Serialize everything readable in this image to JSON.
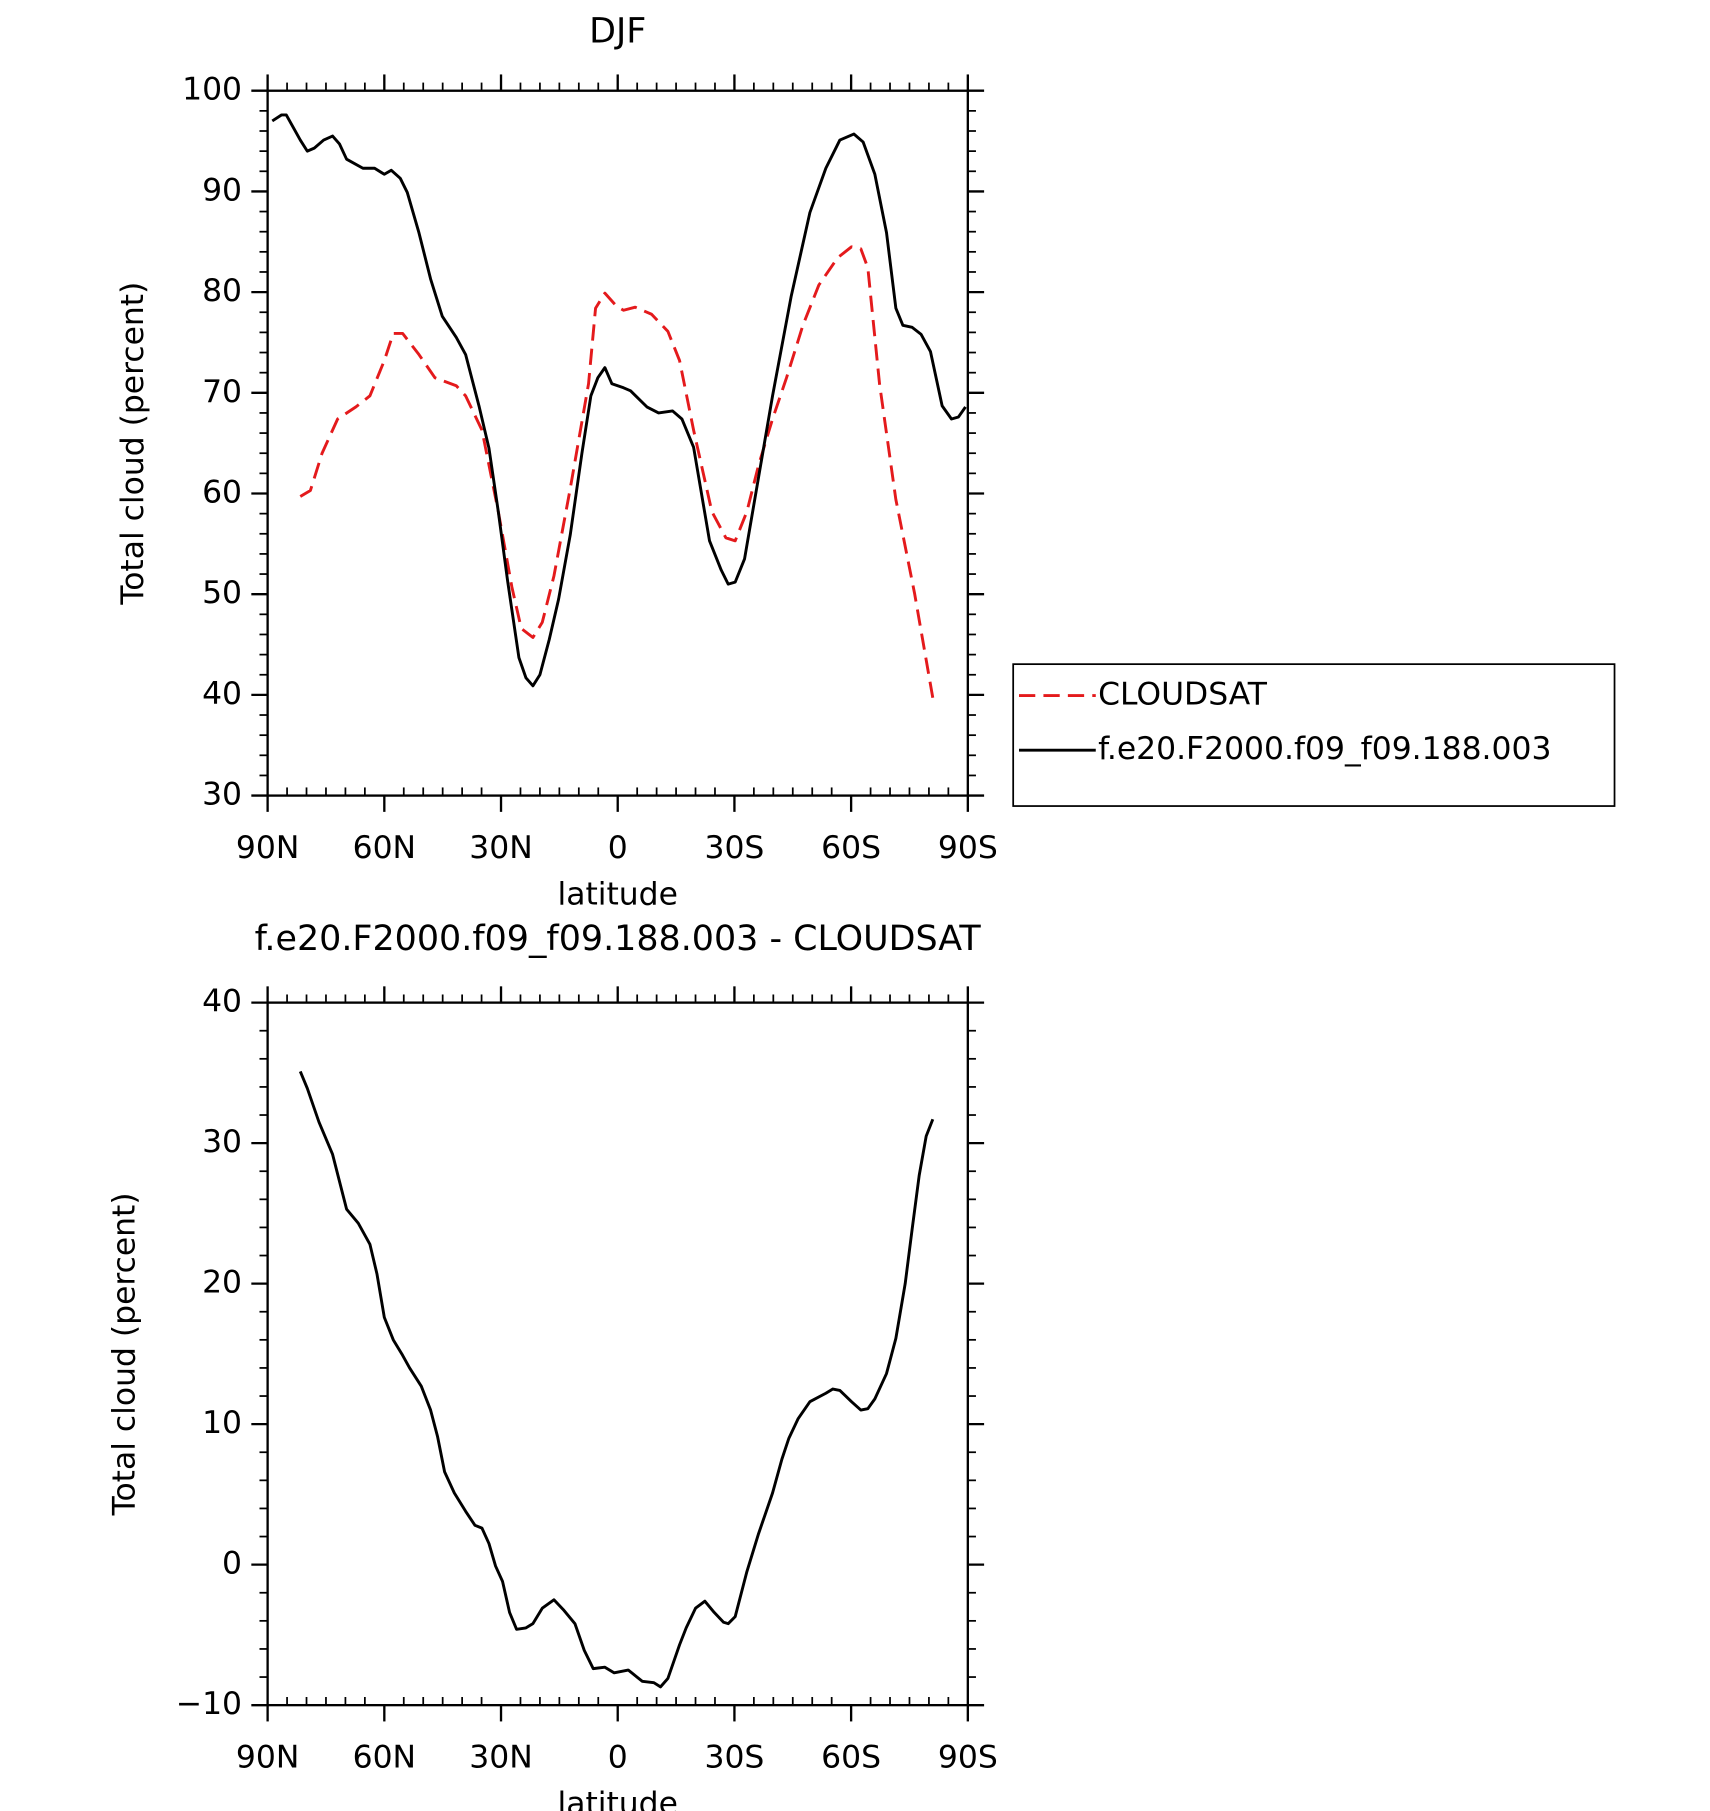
{
  "chart_data": [
    {
      "type": "line",
      "title": "DJF",
      "xlabel": "latitude",
      "ylabel": "Total cloud (percent)",
      "xlim": [
        90,
        -90
      ],
      "xticks": [
        {
          "value": 90,
          "label": "90N"
        },
        {
          "value": 60,
          "label": "60N"
        },
        {
          "value": 30,
          "label": "30N"
        },
        0,
        {
          "value": -30,
          "label": "30S"
        },
        {
          "value": -60,
          "label": "60S"
        },
        {
          "value": -90,
          "label": "90S"
        }
      ],
      "ylim": [
        30,
        100
      ],
      "yticks": [
        30,
        40,
        50,
        60,
        70,
        80,
        90,
        100
      ],
      "legend": "right",
      "series": [
        {
          "name": "CLOUDSAT",
          "color": "#e41a1c",
          "dash": "dashed",
          "x": [
            81.6,
            79.0,
            76.0,
            72.0,
            67.3,
            63.7,
            60.0,
            57.7,
            55.3,
            51.1,
            47.0,
            41.5,
            39.1,
            34.9,
            30.7,
            27.2,
            24.8,
            21.8,
            19.4,
            16.4,
            12.2,
            7.5,
            5.7,
            3.3,
            0.3,
            -1.5,
            -4.5,
            -8.7,
            -12.9,
            -15.9,
            -19.5,
            -24.2,
            -27.8,
            -30.2,
            -33.2,
            -36.2,
            -39.8,
            -43.4,
            -47.6,
            -51.7,
            -56.5,
            -60.1,
            -62.5,
            -64.3,
            -67.3,
            -71.5,
            -76.3,
            -81.0
          ],
          "values": [
            59.7,
            60.3,
            64.0,
            67.4,
            68.6,
            69.7,
            73.2,
            75.9,
            75.9,
            73.8,
            71.5,
            70.7,
            69.7,
            66.3,
            58.2,
            50.7,
            46.6,
            45.7,
            47.2,
            51.8,
            60.5,
            70.9,
            78.4,
            79.9,
            78.6,
            78.2,
            78.5,
            77.8,
            76.1,
            73.2,
            66.3,
            58.2,
            55.6,
            55.3,
            58.2,
            62.8,
            67.4,
            71.5,
            76.7,
            80.7,
            83.4,
            84.5,
            84.3,
            82.4,
            70.9,
            59.4,
            50.1,
            39.7
          ]
        },
        {
          "name": "f.e20.F2000.f09_f09.188.003",
          "color": "#000000",
          "dash": "solid",
          "x": [
            88.8,
            86.4,
            85.2,
            81.6,
            79.8,
            78.0,
            75.6,
            73.3,
            71.5,
            69.7,
            65.5,
            62.5,
            60.0,
            58.2,
            55.9,
            54.1,
            51.1,
            48.1,
            45.1,
            41.5,
            39.1,
            35.6,
            33.1,
            30.7,
            28.3,
            25.4,
            23.6,
            21.8,
            20.0,
            17.6,
            15.2,
            12.2,
            9.2,
            6.9,
            5.1,
            3.3,
            1.5,
            -1.5,
            -3.3,
            -7.5,
            -10.5,
            -14.1,
            -16.5,
            -19.5,
            -23.6,
            -26.6,
            -28.4,
            -30.2,
            -32.6,
            -36.2,
            -39.8,
            -44.6,
            -49.4,
            -53.5,
            -57.1,
            -60.7,
            -63.1,
            -66.1,
            -69.1,
            -71.5,
            -73.3,
            -75.7,
            -78.0,
            -80.4,
            -83.4,
            -85.8,
            -87.6,
            -89.4
          ],
          "values": [
            97.0,
            97.6,
            97.6,
            95.1,
            94.0,
            94.3,
            95.1,
            95.5,
            94.7,
            93.2,
            92.3,
            92.3,
            91.7,
            92.1,
            91.3,
            89.9,
            85.9,
            81.3,
            77.6,
            75.5,
            73.8,
            68.6,
            64.5,
            58.2,
            51.3,
            43.7,
            41.7,
            40.9,
            42.0,
            45.5,
            49.5,
            55.9,
            64.0,
            69.7,
            71.5,
            72.5,
            70.9,
            70.5,
            70.2,
            68.6,
            68.0,
            68.2,
            67.4,
            64.6,
            55.3,
            52.4,
            51.0,
            51.2,
            53.5,
            61.6,
            69.7,
            79.6,
            87.9,
            92.3,
            95.1,
            95.7,
            94.9,
            91.7,
            85.9,
            78.4,
            76.7,
            76.5,
            75.8,
            74.1,
            68.7,
            67.4,
            67.6,
            68.6
          ]
        }
      ]
    },
    {
      "type": "line",
      "title": "f.e20.F2000.f09_f09.188.003 - CLOUDSAT",
      "xlabel": "latitude",
      "ylabel": "Total cloud (percent)",
      "xlim": [
        90,
        -90
      ],
      "xticks": [
        {
          "value": 90,
          "label": "90N"
        },
        {
          "value": 60,
          "label": "60N"
        },
        {
          "value": 30,
          "label": "30N"
        },
        0,
        {
          "value": -30,
          "label": "30S"
        },
        {
          "value": -60,
          "label": "60S"
        },
        {
          "value": -90,
          "label": "90S"
        }
      ],
      "ylim": [
        -10,
        40
      ],
      "yticks": [
        {
          "value": -10,
          "label": "−10"
        },
        0,
        10,
        20,
        30,
        40
      ],
      "series": [
        {
          "color": "#000000",
          "dash": "solid",
          "x": [
            81.6,
            79.8,
            76.8,
            73.3,
            69.7,
            66.7,
            63.7,
            61.9,
            60.0,
            57.7,
            55.3,
            53.5,
            50.5,
            48.1,
            46.3,
            44.5,
            42.0,
            39.1,
            36.7,
            34.9,
            33.1,
            31.4,
            29.6,
            27.8,
            26.0,
            23.6,
            21.8,
            19.4,
            16.4,
            14.0,
            11.0,
            8.6,
            6.3,
            3.3,
            0.9,
            -2.7,
            -6.3,
            -9.3,
            -11.0,
            -12.9,
            -15.9,
            -17.6,
            -20.0,
            -22.4,
            -24.8,
            -27.2,
            -28.4,
            -30.2,
            -33.2,
            -36.2,
            -39.8,
            -42.2,
            -44.0,
            -46.4,
            -49.4,
            -53.5,
            -55.3,
            -57.1,
            -60.1,
            -62.5,
            -64.3,
            -66.1,
            -69.1,
            -71.5,
            -73.9,
            -75.7,
            -77.5,
            -79.3,
            -81.0
          ],
          "values": [
            35.1,
            33.9,
            31.5,
            29.2,
            25.3,
            24.3,
            22.8,
            20.7,
            17.6,
            16.0,
            14.9,
            14.0,
            12.7,
            11.0,
            9.1,
            6.6,
            5.1,
            3.8,
            2.8,
            2.6,
            1.5,
            -0.1,
            -1.2,
            -3.4,
            -4.6,
            -4.5,
            -4.2,
            -3.1,
            -2.5,
            -3.2,
            -4.2,
            -6.1,
            -7.4,
            -7.3,
            -7.7,
            -7.5,
            -8.3,
            -8.4,
            -8.7,
            -8.1,
            -5.7,
            -4.5,
            -3.1,
            -2.6,
            -3.4,
            -4.1,
            -4.2,
            -3.7,
            -0.5,
            2.2,
            5.1,
            7.5,
            9.0,
            10.4,
            11.6,
            12.2,
            12.5,
            12.4,
            11.6,
            11.0,
            11.1,
            11.8,
            13.6,
            16.1,
            20.0,
            23.9,
            27.7,
            30.5,
            31.7
          ]
        }
      ]
    }
  ]
}
